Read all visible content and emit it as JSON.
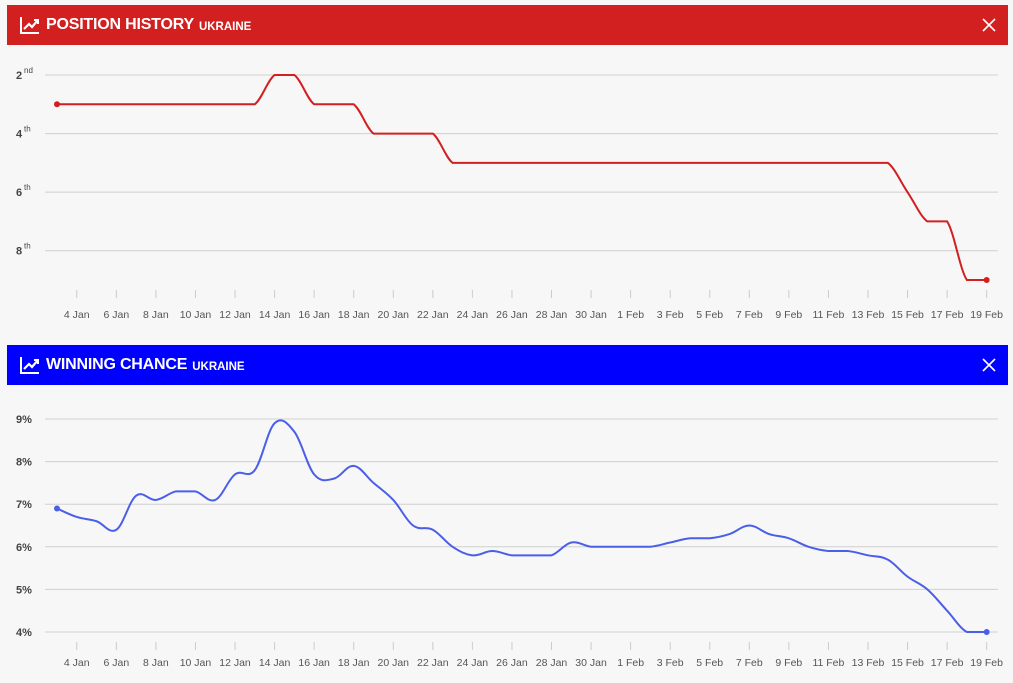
{
  "panels": [
    {
      "title": "POSITION HISTORY",
      "subtitle": "UKRAINE",
      "color": "#d21f1f",
      "icon": "trending-up-icon",
      "close_icon": "close-icon"
    },
    {
      "title": "WINNING CHANCE",
      "subtitle": "UKRAINE",
      "color": "#0000ff",
      "icon": "trending-up-icon",
      "close_icon": "close-icon"
    }
  ],
  "chart_data": [
    {
      "type": "line",
      "title": "POSITION HISTORY UKRAINE",
      "start_date": "3 Jan",
      "end_date": "19 Feb",
      "x_tick_labels": [
        "4 Jan",
        "6 Jan",
        "8 Jan",
        "10 Jan",
        "12 Jan",
        "14 Jan",
        "16 Jan",
        "18 Jan",
        "20 Jan",
        "22 Jan",
        "24 Jan",
        "26 Jan",
        "28 Jan",
        "30 Jan",
        "1 Feb",
        "3 Feb",
        "5 Feb",
        "7 Feb",
        "9 Feb",
        "11 Feb",
        "13 Feb",
        "15 Feb",
        "17 Feb",
        "19 Feb"
      ],
      "y_ticks": [
        {
          "value": 2,
          "num": "2",
          "sup": "nd"
        },
        {
          "value": 4,
          "num": "4",
          "sup": "th"
        },
        {
          "value": 6,
          "num": "6",
          "sup": "th"
        },
        {
          "value": 8,
          "num": "8",
          "sup": "th"
        }
      ],
      "ylim": [
        2,
        9
      ],
      "y_inverted": true,
      "grid": true,
      "series": [
        {
          "name": "Position",
          "color": "#d21f1f",
          "values": [
            3,
            3,
            3,
            3,
            3,
            3,
            3,
            3,
            3,
            3,
            3,
            2,
            2,
            3,
            3,
            3,
            4,
            4,
            4,
            4,
            5,
            5,
            5,
            5,
            5,
            5,
            5,
            5,
            5,
            5,
            5,
            5,
            5,
            5,
            5,
            5,
            5,
            5,
            5,
            5,
            5,
            5,
            5,
            6,
            7,
            7,
            9,
            9
          ]
        }
      ]
    },
    {
      "type": "line",
      "title": "WINNING CHANCE UKRAINE",
      "start_date": "3 Jan",
      "end_date": "19 Feb",
      "x_tick_labels": [
        "4 Jan",
        "6 Jan",
        "8 Jan",
        "10 Jan",
        "12 Jan",
        "14 Jan",
        "16 Jan",
        "18 Jan",
        "20 Jan",
        "22 Jan",
        "24 Jan",
        "26 Jan",
        "28 Jan",
        "30 Jan",
        "1 Feb",
        "3 Feb",
        "5 Feb",
        "7 Feb",
        "9 Feb",
        "11 Feb",
        "13 Feb",
        "15 Feb",
        "17 Feb",
        "19 Feb"
      ],
      "y_ticks": [
        {
          "value": 4,
          "label": "4%"
        },
        {
          "value": 5,
          "label": "5%"
        },
        {
          "value": 6,
          "label": "6%"
        },
        {
          "value": 7,
          "label": "7%"
        },
        {
          "value": 8,
          "label": "8%"
        },
        {
          "value": 9,
          "label": "9%"
        }
      ],
      "ylim": [
        4,
        9
      ],
      "grid": true,
      "series": [
        {
          "name": "Winning chance (%)",
          "color": "#4a5ee8",
          "values": [
            6.9,
            6.7,
            6.6,
            6.4,
            7.2,
            7.1,
            7.3,
            7.3,
            7.1,
            7.7,
            7.8,
            8.9,
            8.7,
            7.7,
            7.6,
            7.9,
            7.5,
            7.1,
            6.5,
            6.4,
            6.0,
            5.8,
            5.9,
            5.8,
            5.8,
            5.8,
            6.1,
            6.0,
            6.0,
            6.0,
            6.0,
            6.1,
            6.2,
            6.2,
            6.3,
            6.5,
            6.3,
            6.2,
            6.0,
            5.9,
            5.9,
            5.8,
            5.7,
            5.3,
            5.0,
            4.5,
            4.0,
            4.0
          ]
        }
      ]
    }
  ]
}
